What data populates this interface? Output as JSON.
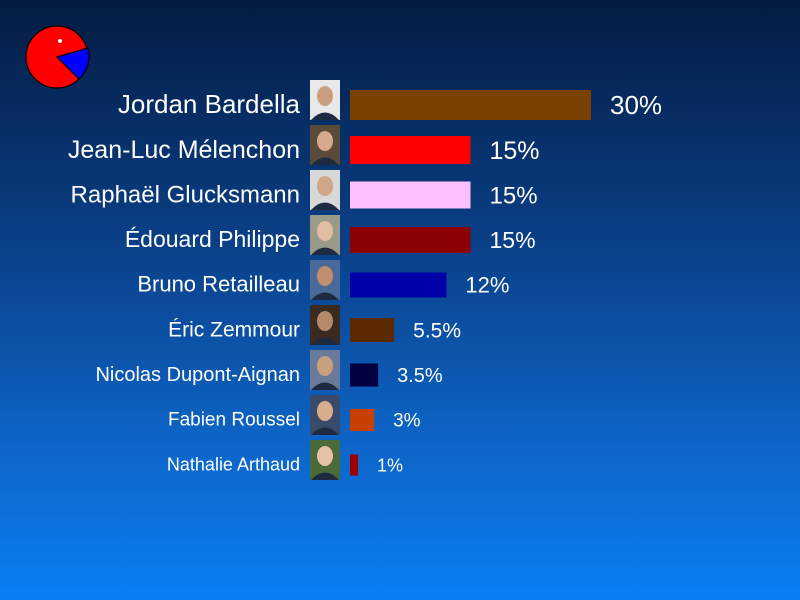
{
  "chart_data": {
    "type": "bar",
    "orientation": "horizontal",
    "categories": [
      "Jordan Bardella",
      "Jean-Luc Mélenchon",
      "Raphaël Glucksmann",
      "Édouard Philippe",
      "Bruno Retailleau",
      "Éric Zemmour",
      "Nicolas Dupont-Aignan",
      "Fabien Roussel",
      "Nathalie Arthaud"
    ],
    "values": [
      30,
      15,
      15,
      15,
      12,
      5.5,
      3.5,
      3,
      1
    ],
    "value_labels": [
      "30%",
      "15%",
      "15%",
      "15%",
      "12%",
      "5.5%",
      "3.5%",
      "3%",
      "1%"
    ],
    "colors": [
      "#7a4100",
      "#ff0000",
      "#ffc0ff",
      "#8b0000",
      "#0000a8",
      "#5c2a00",
      "#000040",
      "#c84000",
      "#9a0000"
    ],
    "title": "",
    "xlabel": "",
    "ylabel": "",
    "grid": false,
    "legend": "none"
  },
  "logo": {
    "icon": "pie-logo-icon",
    "colors": [
      "#ff0000",
      "#0000ff"
    ]
  }
}
